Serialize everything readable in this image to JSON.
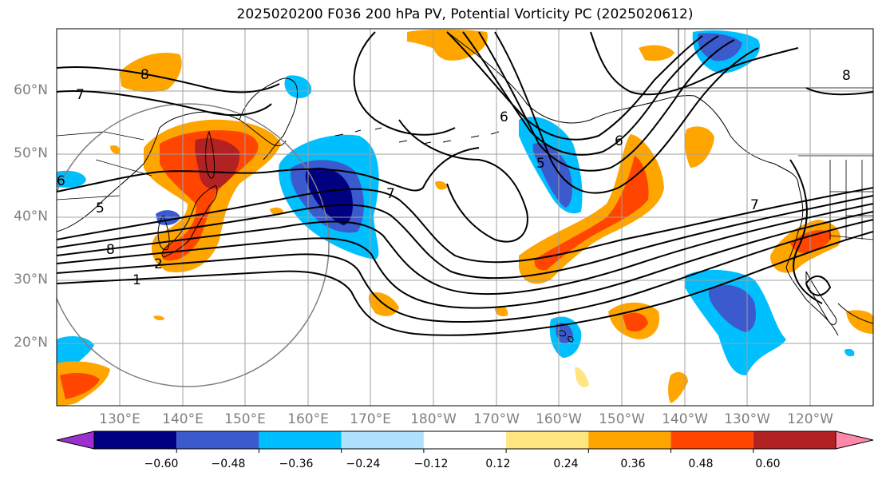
{
  "title": "2025020200 F036 200 hPa PV, Potential Vorticity PC (2025020612)",
  "lat_labels": [
    "60°N",
    "50°N",
    "40°N",
    "30°N",
    "20°N"
  ],
  "lon_labels": [
    "130°E",
    "140°E",
    "150°E",
    "160°E",
    "170°E",
    "180°W",
    "170°W",
    "160°W",
    "150°W",
    "140°W",
    "130°W",
    "120°W"
  ],
  "colorbar": {
    "ticks": [
      "−0.60",
      "−0.48",
      "−0.36",
      "−0.24",
      "−0.12",
      "0.12",
      "0.24",
      "0.36",
      "0.48",
      "0.60"
    ],
    "colors": [
      "#9b30d0",
      "#000080",
      "#3a5acd",
      "#00bfff",
      "#b0e2ff",
      "#ffffff",
      "#ffe680",
      "#ffa500",
      "#ff4500",
      "#b22222",
      "#ff88aa"
    ]
  },
  "contour_labels": [
    "7",
    "8",
    "6",
    "5",
    "8",
    "7",
    "7",
    "1",
    "2",
    "6",
    "6",
    "8",
    "5"
  ],
  "colors": {
    "grid": "#a0a0a0",
    "contour": "#000000",
    "range_ring": "#808080"
  }
}
